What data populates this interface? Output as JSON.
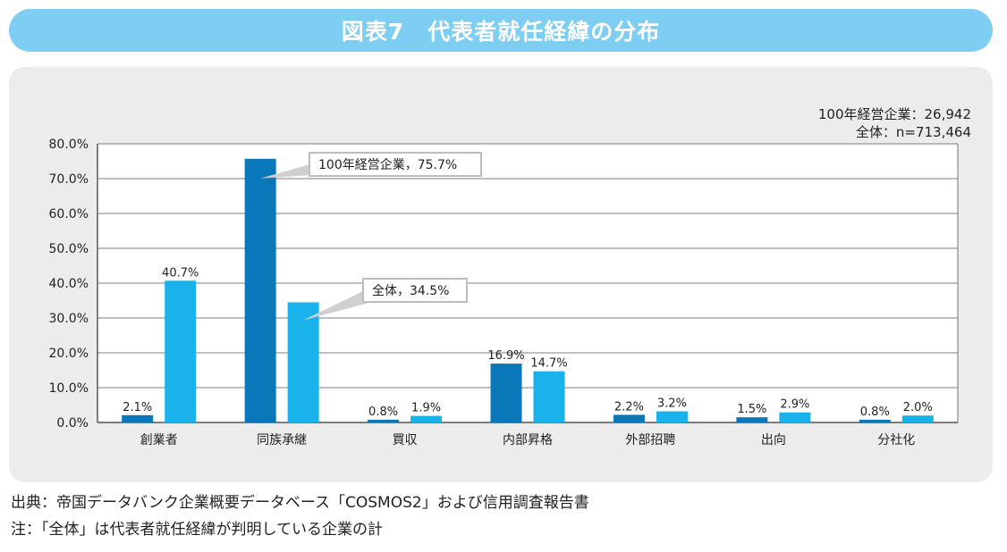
{
  "title": "図表7　代表者就任経緯の分布",
  "sample_notes": [
    "100年経営企業：26,942",
    "全体：n=713,464"
  ],
  "footer": {
    "source": "出典：帝国データバンク企業概要データベース「COSMOS2」および信用調査報告書",
    "note": "注：「全体」は代表者就任経緯が判明している企業の計"
  },
  "colors": {
    "banner": "#7ecdf2",
    "panel": "#ececec",
    "series_100yr": "#0a78b8",
    "series_all": "#1ab2ea"
  },
  "chart_data": {
    "type": "bar",
    "categories": [
      "創業者",
      "同族承継",
      "買収",
      "内部昇格",
      "外部招聘",
      "出向",
      "分社化"
    ],
    "series": [
      {
        "name": "100年経営企業",
        "values": [
          2.1,
          75.7,
          0.8,
          16.9,
          2.2,
          1.5,
          0.8
        ],
        "labels": [
          "2.1%",
          "",
          "0.8%",
          "16.9%",
          "2.2%",
          "1.5%",
          "0.8%"
        ]
      },
      {
        "name": "全体",
        "values": [
          40.7,
          34.5,
          1.9,
          14.7,
          3.2,
          2.9,
          2.0
        ],
        "labels": [
          "40.7%",
          "",
          "1.9%",
          "14.7%",
          "3.2%",
          "2.9%",
          "2.0%"
        ]
      }
    ],
    "ylim": [
      0,
      80
    ],
    "yticks": [
      "0.0%",
      "10.0%",
      "20.0%",
      "30.0%",
      "40.0%",
      "50.0%",
      "60.0%",
      "70.0%",
      "80.0%"
    ],
    "grid": true,
    "callouts": [
      {
        "series": 0,
        "category": 1,
        "text": "100年経営企業，75.7%"
      },
      {
        "series": 1,
        "category": 1,
        "text": "全体，34.5%"
      }
    ]
  }
}
